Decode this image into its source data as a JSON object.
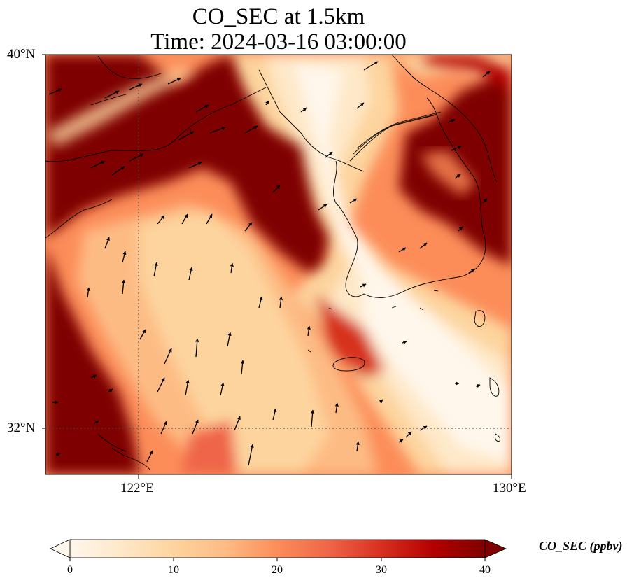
{
  "title": {
    "line1": "CO_SEC at 1.5km",
    "line2": "Time: 2024-03-16 03:00:00"
  },
  "axes": {
    "lat_ticks": [
      "40°N",
      "32°N"
    ],
    "lon_ticks": [
      "122°E",
      "130°E"
    ],
    "lon_range": [
      120,
      130
    ],
    "lat_range": [
      31,
      40
    ],
    "gridlines": "dotted"
  },
  "colorbar": {
    "label": "CO_SEC (ppbv)",
    "ticks": [
      "0",
      "10",
      "20",
      "30",
      "40"
    ],
    "range": [
      0,
      40
    ],
    "colormap": "OrRd",
    "extend": "both",
    "stops": [
      "#fff7ec",
      "#fee8c8",
      "#fdd49e",
      "#fdbb84",
      "#fc8d59",
      "#ef6548",
      "#d7301f",
      "#b30000",
      "#7f0000"
    ]
  },
  "map_legend": {
    "background_low": "#fff7ec",
    "background_high": "#7f0000",
    "field_description_colors": [
      "#7f0000",
      "#fdd49e",
      "#fc8d59",
      "#fff7ec"
    ]
  }
}
